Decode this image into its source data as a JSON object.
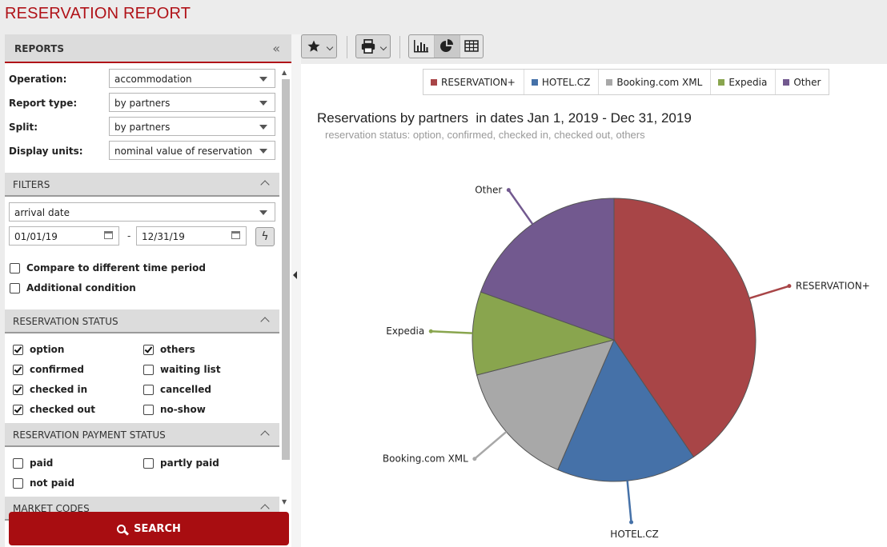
{
  "page_title": "RESERVATION REPORT",
  "sidebar": {
    "header": "REPORTS",
    "collapse_glyph": "«",
    "fields": [
      {
        "label": "Operation:",
        "value": "accommodation"
      },
      {
        "label": "Report type:",
        "value": "by partners"
      },
      {
        "label": "Split:",
        "value": "by partners"
      },
      {
        "label": "Display units:",
        "value": "nominal value of reservation"
      }
    ],
    "filters": {
      "title": "FILTERS",
      "date_type": "arrival date",
      "date_from": "01/01/19",
      "date_to": "12/31/19",
      "date_sep": "-",
      "compare_label": "Compare to different time period",
      "additional_label": "Additional condition"
    },
    "reservation_status": {
      "title": "RESERVATION STATUS",
      "items": [
        {
          "label": "option",
          "checked": true
        },
        {
          "label": "others",
          "checked": true
        },
        {
          "label": "confirmed",
          "checked": true
        },
        {
          "label": "waiting list",
          "checked": false
        },
        {
          "label": "checked in",
          "checked": true
        },
        {
          "label": "cancelled",
          "checked": false
        },
        {
          "label": "checked out",
          "checked": true
        },
        {
          "label": "no-show",
          "checked": false
        }
      ]
    },
    "payment_status": {
      "title": "RESERVATION PAYMENT STATUS",
      "items": [
        {
          "label": "paid",
          "checked": false
        },
        {
          "label": "partly paid",
          "checked": false
        },
        {
          "label": "not paid",
          "checked": false
        }
      ]
    },
    "market_codes_title": "MARKET CODES",
    "search_label": "SEARCH"
  },
  "toolbar": {
    "icons": [
      "star-icon",
      "printer-icon",
      "bar-chart-icon",
      "pie-chart-icon",
      "table-icon"
    ],
    "active_view": "pie-chart-icon"
  },
  "chart_data": {
    "type": "pie",
    "title": "Reservations by partners  in dates Jan 1, 2019 - Dec 31, 2019",
    "subtitle": "reservation status: option, confirmed, checked in, checked out, others",
    "legend": [
      "RESERVATION+",
      "HOTEL.CZ",
      "Booking.com XML",
      "Expedia",
      "Other"
    ],
    "slices": [
      {
        "label": "RESERVATION+",
        "value": 40.5,
        "color": "#a84547"
      },
      {
        "label": "HOTEL.CZ",
        "value": 16.0,
        "color": "#4571a8"
      },
      {
        "label": "Booking.com XML",
        "value": 14.5,
        "color": "#a8a8a8"
      },
      {
        "label": "Expedia",
        "value": 9.5,
        "color": "#89a54e"
      },
      {
        "label": "Other",
        "value": 19.5,
        "color": "#72598f"
      }
    ]
  }
}
